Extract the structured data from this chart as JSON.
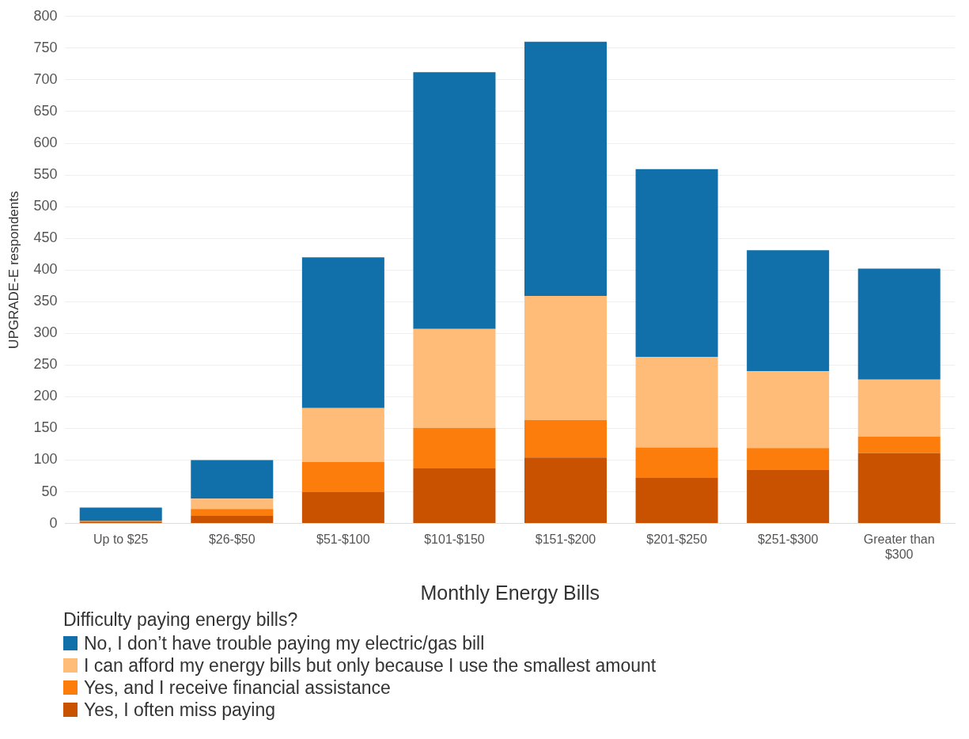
{
  "chart_data": {
    "type": "bar",
    "stacked": true,
    "xlabel": "Monthly Energy Bills",
    "ylabel": "UPGRADE-E respondents",
    "legend_title": "Difficulty paying energy bills?",
    "legend": "bottom",
    "grid": "y",
    "categories": [
      "Up to $25",
      "$26-$50",
      "$51-$100",
      "$101-$150",
      "$151-$200",
      "$201-$250",
      "$251-$300",
      "Greater than $300"
    ],
    "ylim": [
      0,
      800
    ],
    "yticks": [
      0,
      50,
      100,
      150,
      200,
      250,
      300,
      350,
      400,
      450,
      500,
      550,
      600,
      650,
      700,
      750,
      800
    ],
    "series": [
      {
        "name": "Yes, I often miss paying",
        "color": "#c85200",
        "values": [
          2,
          12,
          50,
          87,
          104,
          72,
          85,
          111
        ]
      },
      {
        "name": "Yes, and I receive financial assistance",
        "color": "#fc7d0b",
        "values": [
          2,
          11,
          47,
          64,
          59,
          48,
          34,
          26
        ]
      },
      {
        "name": "I can afford my energy bills but only because I use the smallest amount",
        "color": "#ffbc79",
        "values": [
          null,
          16,
          85,
          156,
          196,
          143,
          121,
          90
        ]
      },
      {
        "name": "No, I don’t have trouble paying my electric/gas bill",
        "color": "#1170aa",
        "values": [
          21,
          61,
          238,
          405,
          401,
          296,
          191,
          175
        ]
      }
    ]
  }
}
